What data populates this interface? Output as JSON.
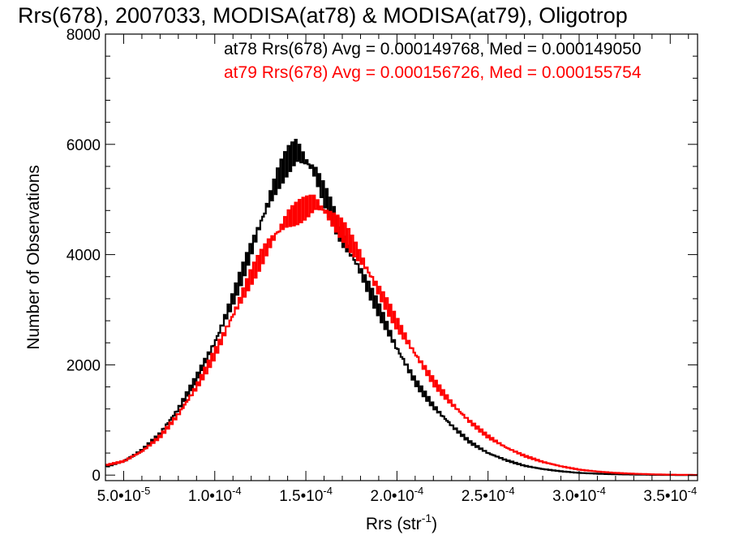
{
  "chart_data": {
    "type": "line",
    "title": "Rrs(678), 2007033, MODISA(at78) & MODISA(at79), Oligotrop",
    "xlabel_main": "Rrs (str",
    "xlabel_sup": "-1",
    "xlabel_tail": ")",
    "ylabel": "Number of Observations",
    "xlim": [
      4e-05,
      0.000365
    ],
    "ylim": [
      -100,
      8000
    ],
    "x_ticks": [
      {
        "value": 5e-05,
        "mantissa": "5.0•10",
        "exp": "-5"
      },
      {
        "value": 0.0001,
        "mantissa": "1.0•10",
        "exp": "-4"
      },
      {
        "value": 0.00015,
        "mantissa": "1.5•10",
        "exp": "-4"
      },
      {
        "value": 0.0002,
        "mantissa": "2.0•10",
        "exp": "-4"
      },
      {
        "value": 0.00025,
        "mantissa": "2.5•10",
        "exp": "-4"
      },
      {
        "value": 0.0003,
        "mantissa": "3.0•10",
        "exp": "-4"
      },
      {
        "value": 0.00035,
        "mantissa": "3.5•10",
        "exp": "-4"
      }
    ],
    "y_ticks": [
      0,
      2000,
      4000,
      6000,
      8000
    ],
    "series": [
      {
        "name": "at78",
        "color": "#000000",
        "legend": "at78 Rrs(678) Avg = 0.000149768, Med = 0.000149050",
        "x": [
          4e-05,
          5e-05,
          6e-05,
          7e-05,
          8e-05,
          9e-05,
          0.0001,
          0.00011,
          0.00012,
          0.00013,
          0.000135,
          0.00014,
          0.000145,
          0.00015,
          0.000155,
          0.00016,
          0.000165,
          0.00017,
          0.00018,
          0.00019,
          0.0002,
          0.00021,
          0.00022,
          0.00023,
          0.00024,
          0.00025,
          0.00026,
          0.00027,
          0.00028,
          0.00029,
          0.0003,
          0.00031,
          0.00032,
          0.00033,
          0.00034,
          0.00035,
          0.000365
        ],
        "y": [
          150,
          250,
          450,
          750,
          1200,
          1750,
          2400,
          3200,
          4100,
          5000,
          5400,
          5700,
          5900,
          5700,
          5500,
          5100,
          4700,
          4300,
          3700,
          3000,
          2300,
          1700,
          1250,
          900,
          600,
          400,
          270,
          170,
          110,
          70,
          40,
          25,
          15,
          10,
          5,
          3,
          0
        ]
      },
      {
        "name": "at79",
        "color": "#ff0000",
        "legend": "at79 Rrs(678) Avg = 0.000156726, Med = 0.000155754",
        "x": [
          4e-05,
          5e-05,
          6e-05,
          7e-05,
          8e-05,
          9e-05,
          0.0001,
          0.00011,
          0.00012,
          0.00013,
          0.00014,
          0.00015,
          0.000155,
          0.00016,
          0.00017,
          0.00018,
          0.00019,
          0.0002,
          0.00021,
          0.00022,
          0.00023,
          0.00024,
          0.00025,
          0.00026,
          0.00027,
          0.00028,
          0.00029,
          0.0003,
          0.00031,
          0.00032,
          0.00033,
          0.00034,
          0.00035,
          0.000365
        ],
        "y": [
          180,
          250,
          430,
          700,
          1100,
          1600,
          2200,
          2900,
          3600,
          4200,
          4650,
          4850,
          4950,
          4800,
          4450,
          3950,
          3350,
          2750,
          2200,
          1700,
          1300,
          970,
          700,
          500,
          350,
          240,
          160,
          100,
          65,
          40,
          25,
          15,
          8,
          3
        ]
      }
    ]
  }
}
